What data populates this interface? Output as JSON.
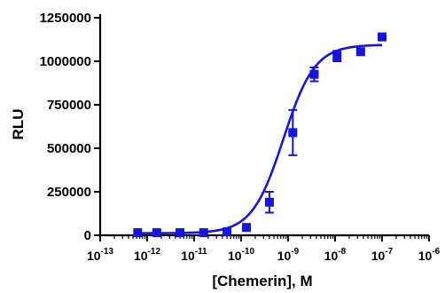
{
  "chart_data": {
    "type": "scatter",
    "xlabel": "[Chemerin], M",
    "ylabel": "RLU",
    "x_scale": "log",
    "xlim": [
      1e-13,
      1e-06
    ],
    "ylim": [
      0,
      1250000
    ],
    "x_ticks": [
      {
        "value": 1e-13,
        "base": "10",
        "exp": "-13"
      },
      {
        "value": 1e-12,
        "base": "10",
        "exp": "-12"
      },
      {
        "value": 1e-11,
        "base": "10",
        "exp": "-11"
      },
      {
        "value": 1e-10,
        "base": "10",
        "exp": "-10"
      },
      {
        "value": 1e-09,
        "base": "10",
        "exp": "-9"
      },
      {
        "value": 1e-08,
        "base": "10",
        "exp": "-8"
      },
      {
        "value": 1e-07,
        "base": "10",
        "exp": "-7"
      },
      {
        "value": 1e-06,
        "base": "10",
        "exp": "-6"
      }
    ],
    "y_ticks": [
      {
        "value": 0,
        "label": "0"
      },
      {
        "value": 250000,
        "label": "250000"
      },
      {
        "value": 500000,
        "label": "500000"
      },
      {
        "value": 750000,
        "label": "750000"
      },
      {
        "value": 1000000,
        "label": "1000000"
      },
      {
        "value": 1250000,
        "label": "1250000"
      }
    ],
    "grid": false,
    "legend": "none",
    "color": "#1515e0",
    "points": [
      {
        "x": 6.3e-13,
        "y": 15000,
        "err": 0
      },
      {
        "x": 1.6e-12,
        "y": 15000,
        "err": 0
      },
      {
        "x": 5e-12,
        "y": 15000,
        "err": 0
      },
      {
        "x": 1.6e-11,
        "y": 15000,
        "err": 0
      },
      {
        "x": 5e-11,
        "y": 20000,
        "err": 0
      },
      {
        "x": 1.3e-10,
        "y": 45000,
        "err": 0
      },
      {
        "x": 4e-10,
        "y": 190000,
        "err": 60000
      },
      {
        "x": 1.26e-09,
        "y": 590000,
        "err": 130000
      },
      {
        "x": 3.6e-09,
        "y": 925000,
        "err": 40000
      },
      {
        "x": 1.1e-08,
        "y": 1030000,
        "err": 30000
      },
      {
        "x": 3.5e-08,
        "y": 1055000,
        "err": 0
      },
      {
        "x": 1e-07,
        "y": 1140000,
        "err": 0
      }
    ],
    "fit_curve": {
      "bottom": 12000,
      "top": 1095000,
      "log_ec50": -9.1,
      "hill_slope": 1.3
    }
  }
}
